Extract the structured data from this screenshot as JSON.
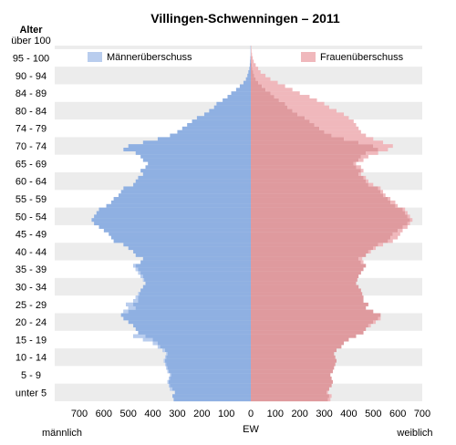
{
  "chart_data": {
    "type": "bar",
    "orientation": "horizontal-pyramid",
    "title": "Villingen-Schwenningen – 2011",
    "y_axis_title": "Alter",
    "x_unit_label": "EW",
    "left_axis_label": "männlich",
    "right_axis_label": "weiblich",
    "xlim": [
      -700,
      700
    ],
    "x_tick_labels": [
      "700",
      "600",
      "500",
      "400",
      "300",
      "200",
      "100",
      "0",
      "100",
      "200",
      "300",
      "400",
      "500",
      "600",
      "700"
    ],
    "age_group_labels": [
      "unter 5",
      "5 - 9",
      "10 - 14",
      "15 - 19",
      "20 - 24",
      "25 - 29",
      "30 - 34",
      "35 - 39",
      "40 - 44",
      "45 - 49",
      "50 - 54",
      "55 - 59",
      "60 - 64",
      "65 - 69",
      "70 - 74",
      "74 - 79",
      "80 - 84",
      "84 - 89",
      "90 - 94",
      "95 - 100",
      "über 100"
    ],
    "legend": [
      {
        "label": "Männerüberschuss",
        "color": "#b9cdee",
        "placement": "top-left"
      },
      {
        "label": "Frauenüberschuss",
        "color": "#f0b8bc",
        "placement": "top-right"
      }
    ],
    "colors": {
      "male": "#8fb0e2",
      "female": "#df9a9e",
      "male_surplus": "#b9cdee",
      "female_surplus": "#f0b8bc"
    },
    "age_years_from_0": true,
    "male": [
      315,
      320,
      310,
      330,
      335,
      340,
      335,
      330,
      340,
      345,
      350,
      355,
      350,
      345,
      360,
      380,
      400,
      440,
      480,
      460,
      470,
      480,
      500,
      520,
      530,
      520,
      500,
      510,
      480,
      470,
      460,
      450,
      440,
      430,
      440,
      450,
      460,
      470,
      480,
      450,
      440,
      470,
      480,
      500,
      520,
      560,
      570,
      580,
      600,
      620,
      640,
      650,
      640,
      630,
      620,
      590,
      570,
      560,
      540,
      530,
      520,
      480,
      470,
      460,
      440,
      450,
      430,
      420,
      440,
      450,
      470,
      520,
      500,
      440,
      380,
      330,
      300,
      280,
      260,
      240,
      220,
      190,
      170,
      150,
      140,
      115,
      95,
      80,
      60,
      45,
      30,
      20,
      14,
      10,
      6,
      4,
      3,
      2,
      1,
      1,
      1
    ],
    "female": [
      325,
      330,
      315,
      320,
      330,
      335,
      330,
      325,
      335,
      340,
      345,
      350,
      345,
      340,
      350,
      370,
      380,
      400,
      430,
      460,
      470,
      490,
      510,
      530,
      530,
      500,
      470,
      480,
      460,
      460,
      455,
      450,
      440,
      430,
      435,
      440,
      450,
      460,
      470,
      460,
      455,
      470,
      490,
      510,
      540,
      580,
      600,
      610,
      620,
      640,
      650,
      660,
      650,
      640,
      630,
      600,
      590,
      570,
      550,
      540,
      530,
      500,
      480,
      470,
      450,
      460,
      450,
      430,
      460,
      480,
      520,
      560,
      580,
      540,
      500,
      470,
      450,
      440,
      430,
      420,
      400,
      380,
      350,
      320,
      300,
      270,
      240,
      200,
      170,
      140,
      110,
      80,
      60,
      40,
      30,
      20,
      12,
      8,
      5,
      3,
      2
    ]
  }
}
